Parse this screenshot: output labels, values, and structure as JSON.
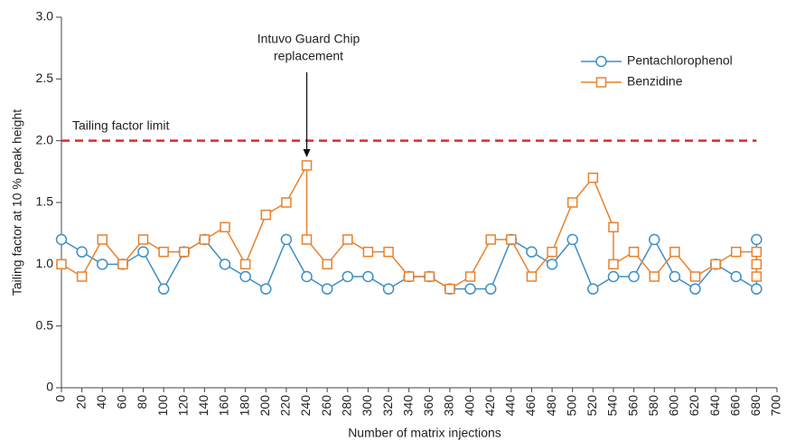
{
  "chart_data": {
    "type": "line",
    "xlabel": "Number of matrix injections",
    "ylabel": "Tailing factor at 10 % peak height",
    "xlim": [
      0,
      700
    ],
    "xticks": [
      0,
      20,
      40,
      60,
      80,
      100,
      120,
      140,
      160,
      180,
      200,
      220,
      240,
      260,
      280,
      300,
      320,
      340,
      360,
      380,
      400,
      420,
      440,
      460,
      480,
      500,
      520,
      540,
      560,
      580,
      600,
      620,
      640,
      660,
      680,
      700
    ],
    "ylim": [
      0,
      3.0
    ],
    "yticks": [
      0,
      0.5,
      {
        "value": 1,
        "label": "1.0"
      },
      1.5,
      {
        "value": 2,
        "label": "2.0"
      },
      2.5,
      {
        "value": 3,
        "label": "3.0"
      }
    ],
    "legend": "upper right",
    "series": [
      {
        "name": "Pentachlorophenol",
        "color": "#3d8fc6",
        "marker": "circle",
        "x": [
          0,
          20,
          40,
          60,
          80,
          100,
          120,
          140,
          160,
          180,
          200,
          220,
          240,
          260,
          280,
          300,
          320,
          340,
          360,
          380,
          400,
          420,
          440,
          460,
          480,
          500,
          520,
          540,
          560,
          580,
          600,
          620,
          640,
          660,
          680,
          680
        ],
        "values": [
          1.2,
          1.1,
          1.0,
          1.0,
          1.1,
          0.8,
          1.1,
          1.2,
          1.0,
          0.9,
          0.8,
          1.2,
          0.9,
          0.8,
          0.9,
          0.9,
          0.8,
          0.9,
          0.9,
          0.8,
          0.8,
          0.8,
          1.2,
          1.1,
          1.0,
          1.2,
          0.8,
          0.9,
          0.9,
          1.2,
          0.9,
          0.8,
          1.0,
          0.9,
          0.8,
          1.2
        ]
      },
      {
        "name": "Benzidine",
        "color": "#e8822d",
        "marker": "square",
        "x": [
          0,
          20,
          40,
          60,
          80,
          100,
          120,
          140,
          160,
          180,
          200,
          220,
          240,
          240,
          260,
          280,
          300,
          320,
          340,
          360,
          380,
          400,
          420,
          440,
          460,
          480,
          500,
          520,
          540,
          540,
          560,
          580,
          600,
          620,
          640,
          660,
          680,
          680,
          680
        ],
        "values": [
          1.0,
          0.9,
          1.2,
          1.0,
          1.2,
          1.1,
          1.1,
          1.2,
          1.3,
          1.0,
          1.4,
          1.5,
          1.8,
          1.2,
          1.0,
          1.2,
          1.1,
          1.1,
          0.9,
          0.9,
          0.8,
          0.9,
          1.2,
          1.2,
          0.9,
          1.1,
          1.5,
          1.7,
          1.3,
          1.0,
          1.1,
          0.9,
          1.1,
          0.9,
          1.0,
          1.1,
          1.1,
          1.0,
          0.9
        ]
      }
    ],
    "limit": {
      "label": "Tailing factor limit",
      "value": 2.0,
      "color": "#e02a2a"
    },
    "annotation": {
      "lines": [
        "Intuvo Guard Chip",
        "replacement"
      ],
      "x": 240,
      "y": 1.8
    }
  }
}
